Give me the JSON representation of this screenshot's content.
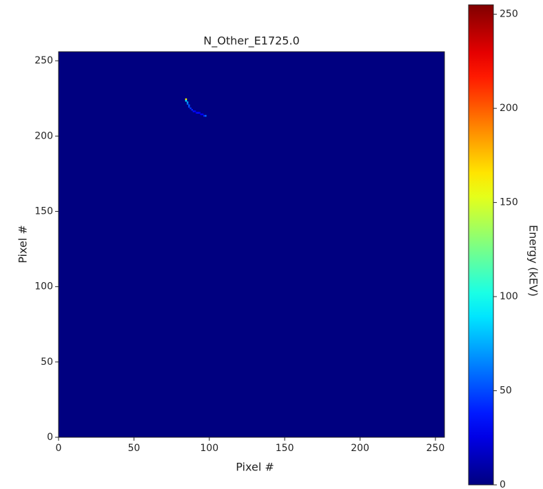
{
  "chart_data": {
    "type": "heatmap",
    "title": "N_Other_E1725.0",
    "xlabel": "Pixel #",
    "ylabel": "Pixel #",
    "colorbar_label": "Energy (kEV)",
    "colormap": "jet",
    "x": [
      84,
      84,
      85,
      85,
      86,
      86,
      87,
      88,
      89,
      90,
      91,
      92,
      93,
      94,
      95,
      96,
      97
    ],
    "y": [
      224,
      223,
      222,
      221,
      220,
      219,
      218,
      217,
      216,
      216,
      215,
      215,
      215,
      214,
      214,
      213,
      213
    ],
    "values": [
      160,
      90,
      70,
      60,
      55,
      50,
      45,
      40,
      35,
      30,
      30,
      35,
      30,
      28,
      30,
      40,
      60
    ],
    "xlim": [
      0,
      256
    ],
    "ylim": [
      0,
      256
    ],
    "clim": [
      0,
      255
    ],
    "xticks": [
      0,
      50,
      100,
      150,
      200,
      250
    ],
    "yticks": [
      0,
      50,
      100,
      150,
      200,
      250
    ],
    "cticks": [
      0,
      50,
      100,
      150,
      200,
      250
    ]
  }
}
